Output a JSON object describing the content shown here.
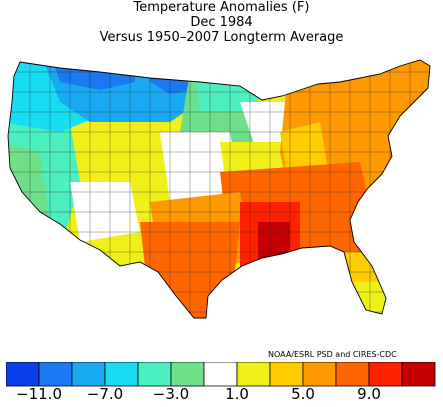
{
  "header": {
    "title": "Temperature Anomalies (F)",
    "period": "Dec 1984",
    "baseline": "Versus 1950–2007 Longterm Average"
  },
  "credit": "NOAA/ESRL PSD and CIRES-CDC",
  "legend": {
    "colors": [
      "#0a3ee8",
      "#1a78f0",
      "#18aaf2",
      "#18dcf2",
      "#4cefc0",
      "#6ee08a",
      "#ffffff",
      "#f0f018",
      "#ffcc00",
      "#ff9900",
      "#ff6600",
      "#ff2200",
      "#c40000"
    ],
    "tick_labels": [
      "−11.0",
      "−7.0",
      "−3.0",
      "1.0",
      "5.0",
      "9.0"
    ]
  },
  "map_regions": [
    {
      "name": "pacific-northwest",
      "category": "cyan"
    },
    {
      "name": "northern-rockies",
      "category": "blue"
    },
    {
      "name": "northern-plains",
      "category": "blue"
    },
    {
      "name": "upper-midwest",
      "category": "green"
    },
    {
      "name": "great-lakes",
      "category": "white"
    },
    {
      "name": "northeast",
      "category": "orange"
    },
    {
      "name": "southeast",
      "category": "orange"
    },
    {
      "name": "lower-mississippi",
      "category": "red"
    },
    {
      "name": "texas",
      "category": "dark-orange"
    },
    {
      "name": "southwest",
      "category": "yellow"
    },
    {
      "name": "california",
      "category": "green"
    },
    {
      "name": "florida",
      "category": "yellow"
    }
  ]
}
